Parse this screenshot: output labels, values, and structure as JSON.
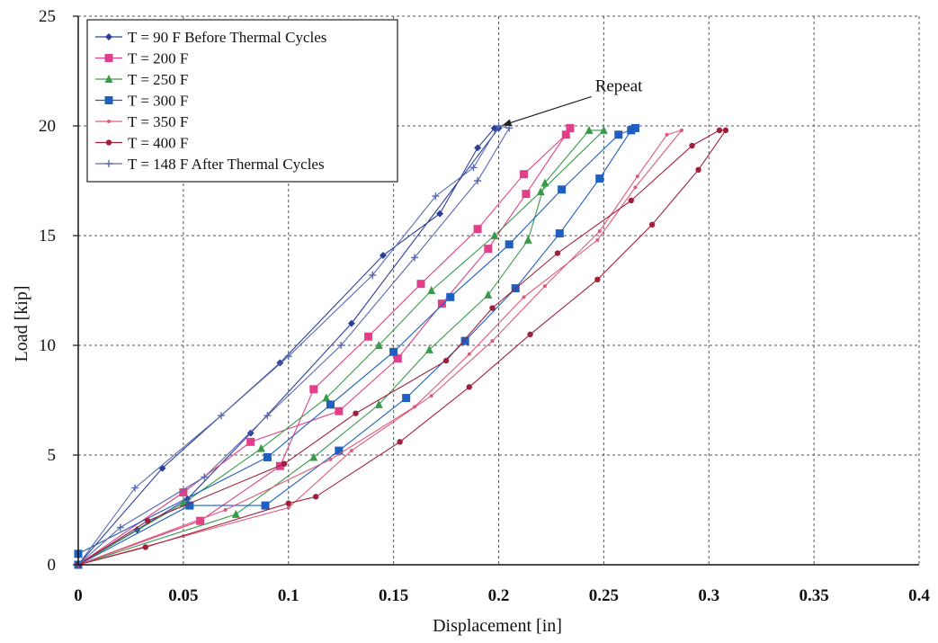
{
  "chart_data": {
    "type": "line",
    "xlabel": "Displacement [in]",
    "ylabel": "Load [kip]",
    "xlim": [
      0,
      0.4
    ],
    "ylim": [
      0,
      25
    ],
    "xticks": [
      "0",
      "0.05",
      "0.1",
      "0.15",
      "0.2",
      "0.25",
      "0.3",
      "0.35",
      "0.4"
    ],
    "yticks": [
      "0",
      "5",
      "10",
      "15",
      "20",
      "25"
    ],
    "grid": "dashed",
    "legend_position": "top-left",
    "annotation": {
      "text": "Repeat",
      "x": 0.245,
      "y": 21.5,
      "target_x": 0.2,
      "target_y": 19.9
    },
    "series": [
      {
        "name": "T = 90 F Before Thermal Cycles",
        "color": "#2b3f9a",
        "marker": "diamond",
        "loading": [
          [
            0,
            0
          ],
          [
            0.04,
            4.4
          ],
          [
            0.096,
            9.2
          ],
          [
            0.145,
            14.1
          ],
          [
            0.172,
            16.0
          ],
          [
            0.19,
            19.0
          ],
          [
            0.198,
            19.9
          ]
        ],
        "unloading": [
          [
            0.2,
            19.9
          ],
          [
            0.13,
            11.0
          ],
          [
            0.082,
            6.0
          ],
          [
            0.052,
            3.0
          ],
          [
            0.028,
            1.6
          ],
          [
            0,
            0
          ]
        ]
      },
      {
        "name": "T = 200 F",
        "color": "#e0408a",
        "marker": "square",
        "loading": [
          [
            0,
            0
          ],
          [
            0.058,
            2.0
          ],
          [
            0.096,
            4.5
          ],
          [
            0.112,
            8.0
          ],
          [
            0.138,
            10.4
          ],
          [
            0.163,
            12.8
          ],
          [
            0.19,
            15.3
          ],
          [
            0.212,
            17.8
          ],
          [
            0.232,
            19.6
          ]
        ],
        "unloading": [
          [
            0.234,
            19.9
          ],
          [
            0.213,
            16.9
          ],
          [
            0.195,
            14.4
          ],
          [
            0.173,
            11.9
          ],
          [
            0.152,
            9.4
          ],
          [
            0.124,
            7.0
          ],
          [
            0.082,
            5.6
          ],
          [
            0.05,
            3.3
          ],
          [
            0,
            0
          ]
        ]
      },
      {
        "name": "T = 250 F",
        "color": "#3a9a4a",
        "marker": "triangle",
        "loading": [
          [
            0,
            0
          ],
          [
            0.075,
            2.3
          ],
          [
            0.112,
            4.9
          ],
          [
            0.143,
            7.3
          ],
          [
            0.167,
            9.8
          ],
          [
            0.195,
            12.3
          ],
          [
            0.214,
            14.8
          ],
          [
            0.222,
            17.4
          ],
          [
            0.243,
            19.8
          ]
        ],
        "unloading": [
          [
            0.25,
            19.8
          ],
          [
            0.22,
            17.0
          ],
          [
            0.198,
            15.0
          ],
          [
            0.168,
            12.5
          ],
          [
            0.143,
            10.0
          ],
          [
            0.118,
            7.6
          ],
          [
            0.087,
            5.3
          ],
          [
            0.05,
            2.8
          ],
          [
            0,
            0
          ]
        ]
      },
      {
        "name": "T = 300 F",
        "color": "#1f5fbf",
        "marker": "square",
        "loading": [
          [
            0,
            0
          ],
          [
            0.053,
            2.7
          ],
          [
            0.089,
            2.7
          ],
          [
            0.124,
            5.2
          ],
          [
            0.156,
            7.6
          ],
          [
            0.184,
            10.2
          ],
          [
            0.208,
            12.6
          ],
          [
            0.229,
            15.1
          ],
          [
            0.248,
            17.6
          ],
          [
            0.263,
            19.8
          ]
        ],
        "unloading": [
          [
            0.265,
            19.9
          ],
          [
            0.257,
            19.6
          ],
          [
            0.23,
            17.1
          ],
          [
            0.205,
            14.6
          ],
          [
            0.177,
            12.2
          ],
          [
            0.15,
            9.7
          ],
          [
            0.12,
            7.3
          ],
          [
            0.09,
            4.9
          ],
          [
            0,
            0.5
          ]
        ]
      },
      {
        "name": "T = 350 F",
        "color": "#e05a7a",
        "marker": "small",
        "loading": [
          [
            0,
            0
          ],
          [
            0.05,
            1.3
          ],
          [
            0.1,
            2.6
          ],
          [
            0.13,
            5.2
          ],
          [
            0.168,
            7.7
          ],
          [
            0.197,
            10.2
          ],
          [
            0.222,
            12.7
          ],
          [
            0.248,
            15.2
          ],
          [
            0.266,
            17.7
          ],
          [
            0.28,
            19.6
          ],
          [
            0.287,
            19.8
          ]
        ],
        "unloading": [
          [
            0.287,
            19.8
          ],
          [
            0.265,
            17.2
          ],
          [
            0.247,
            14.8
          ],
          [
            0.212,
            12.2
          ],
          [
            0.186,
            9.6
          ],
          [
            0.16,
            7.2
          ],
          [
            0.12,
            4.8
          ],
          [
            0.07,
            2.5
          ],
          [
            0,
            0
          ]
        ]
      },
      {
        "name": "T = 400 F",
        "color": "#a0203a",
        "marker": "circle",
        "loading": [
          [
            0,
            0
          ],
          [
            0.032,
            0.8
          ],
          [
            0.1,
            2.8
          ],
          [
            0.113,
            3.1
          ],
          [
            0.153,
            5.6
          ],
          [
            0.186,
            8.1
          ],
          [
            0.215,
            10.5
          ],
          [
            0.247,
            13.0
          ],
          [
            0.273,
            15.5
          ],
          [
            0.295,
            18.0
          ],
          [
            0.308,
            19.8
          ]
        ],
        "unloading": [
          [
            0.305,
            19.8
          ],
          [
            0.292,
            19.1
          ],
          [
            0.263,
            16.6
          ],
          [
            0.228,
            14.2
          ],
          [
            0.197,
            11.7
          ],
          [
            0.175,
            9.3
          ],
          [
            0.132,
            6.9
          ],
          [
            0.098,
            4.6
          ],
          [
            0.033,
            2.0
          ],
          [
            0,
            0
          ]
        ]
      },
      {
        "name": "T = 148 F After Thermal Cycles",
        "color": "#5a6ab0",
        "marker": "plus",
        "loading": [
          [
            0,
            0
          ],
          [
            0.027,
            3.5
          ],
          [
            0.068,
            6.8
          ],
          [
            0.1,
            9.5
          ],
          [
            0.14,
            13.2
          ],
          [
            0.17,
            16.8
          ],
          [
            0.188,
            18.1
          ],
          [
            0.2,
            20.0
          ]
        ],
        "unloading": [
          [
            0.205,
            19.9
          ],
          [
            0.19,
            17.5
          ],
          [
            0.16,
            14.0
          ],
          [
            0.125,
            10.0
          ],
          [
            0.09,
            6.8
          ],
          [
            0.06,
            4.0
          ],
          [
            0.02,
            1.7
          ],
          [
            0,
            0
          ]
        ]
      }
    ]
  }
}
